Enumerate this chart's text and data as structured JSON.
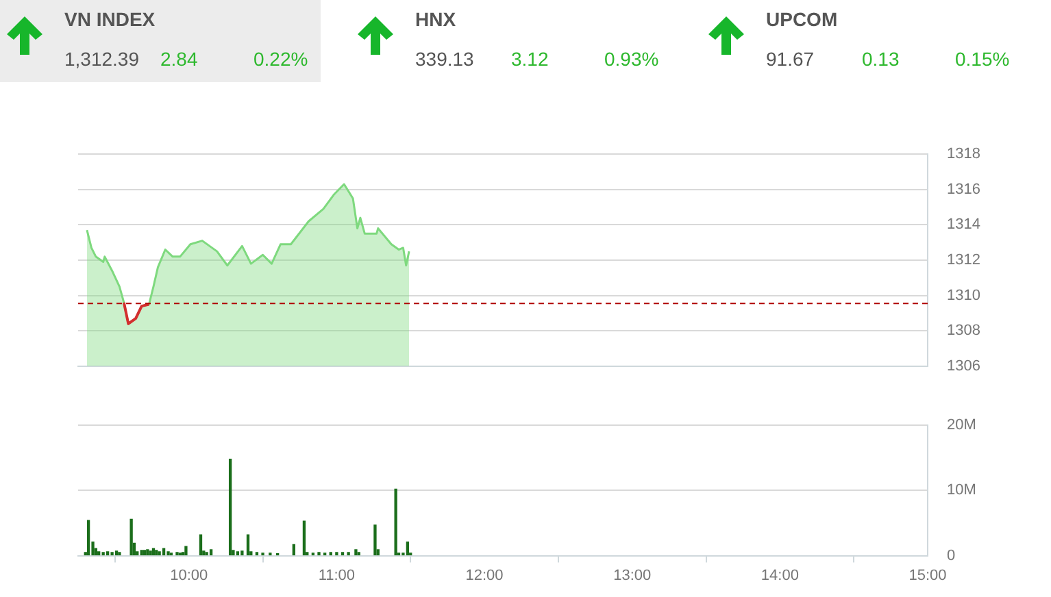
{
  "chart_data": [
    {
      "type": "other",
      "title": "VN INDEX",
      "annotations": [
        "1,312.39",
        "2.84",
        "0.22%"
      ]
    },
    {
      "type": "other",
      "title": "HNX",
      "annotations": [
        "339.13",
        "3.12",
        "0.93%"
      ]
    },
    {
      "type": "other",
      "title": "UPCOM",
      "annotations": [
        "91.67",
        "0.13",
        "0.15%"
      ]
    },
    {
      "type": "area",
      "xlim": [
        9.25,
        15
      ],
      "ylim": [
        1306,
        1318
      ],
      "yticks": [
        1306,
        1308,
        1310,
        1312,
        1314,
        1316,
        1318
      ],
      "tick_labels": "y",
      "grid": "y",
      "marker": "none",
      "ref_lines": [
        {
          "axis": "y",
          "value": 1309.55,
          "color": "#b00000",
          "line_style": "dashed"
        }
      ],
      "series": [
        {
          "color": "#7ed97e",
          "x": [
            9.31,
            9.34,
            9.37,
            9.42,
            9.43,
            9.48,
            9.53,
            9.56,
            9.59,
            9.64,
            9.68,
            9.73,
            9.76,
            9.79,
            9.84,
            9.89,
            9.94,
            10.01,
            10.09,
            10.19,
            10.26,
            10.36,
            10.42,
            10.5,
            10.56,
            10.62,
            10.69,
            10.81,
            10.91,
            10.98,
            11.05,
            11.11,
            11.14,
            11.16,
            11.19,
            11.27,
            11.28,
            11.37,
            11.42,
            11.45,
            11.47,
            11.49
          ],
          "values": [
            1313.7,
            1312.7,
            1312.2,
            1311.9,
            1312.2,
            1311.4,
            1310.5,
            1309.6,
            1308.4,
            1308.7,
            1309.4,
            1309.5,
            1310.5,
            1311.6,
            1312.6,
            1312.2,
            1312.2,
            1312.9,
            1313.1,
            1312.5,
            1311.7,
            1312.8,
            1311.8,
            1312.3,
            1311.8,
            1312.9,
            1312.9,
            1314.2,
            1314.9,
            1315.7,
            1316.3,
            1315.5,
            1313.8,
            1314.4,
            1313.5,
            1313.5,
            1313.8,
            1312.9,
            1312.6,
            1312.7,
            1311.7,
            1312.5
          ]
        },
        {
          "type": "line",
          "color": "#d32f2f",
          "x": [
            9.56,
            9.59,
            9.64,
            9.68,
            9.73
          ],
          "values": [
            1309.6,
            1308.4,
            1308.7,
            1309.4,
            1309.5
          ]
        }
      ]
    },
    {
      "type": "bar",
      "xlim": [
        9.25,
        15
      ],
      "ylim": [
        0,
        20
      ],
      "yticks": [
        {
          "value": 0,
          "label": "0"
        },
        {
          "value": 10,
          "label": "10M"
        },
        {
          "value": 20,
          "label": "20M"
        }
      ],
      "xticks": [
        {
          "value": 10,
          "label": "10:00"
        },
        {
          "value": 11,
          "label": "11:00"
        },
        {
          "value": 12,
          "label": "12:00"
        },
        {
          "value": 13,
          "label": "13:00"
        },
        {
          "value": 14,
          "label": "14:00"
        },
        {
          "value": 15,
          "label": "15:00"
        }
      ],
      "grid": "y",
      "series": [
        {
          "color": "#1b6e1b",
          "x": [
            9.3,
            9.32,
            9.35,
            9.37,
            9.39,
            9.42,
            9.45,
            9.48,
            9.51,
            9.53,
            9.61,
            9.63,
            9.65,
            9.68,
            9.7,
            9.72,
            9.74,
            9.76,
            9.78,
            9.8,
            9.83,
            9.86,
            9.88,
            9.92,
            9.94,
            9.96,
            9.98,
            10.08,
            10.1,
            10.12,
            10.15,
            10.28,
            10.3,
            10.33,
            10.36,
            10.4,
            10.42,
            10.46,
            10.5,
            10.55,
            10.6,
            10.71,
            10.78,
            10.8,
            10.84,
            10.88,
            10.92,
            10.96,
            11.0,
            11.04,
            11.08,
            11.13,
            11.15,
            11.26,
            11.28,
            11.4,
            11.42,
            11.45,
            11.48,
            11.5
          ],
          "values": [
            0.5,
            5.4,
            2.1,
            1.1,
            0.6,
            0.5,
            0.6,
            0.5,
            0.7,
            0.5,
            5.6,
            1.9,
            0.6,
            0.8,
            0.8,
            0.9,
            0.7,
            1.1,
            0.8,
            0.6,
            1.1,
            0.6,
            0.4,
            0.5,
            0.4,
            0.5,
            1.4,
            3.2,
            0.7,
            0.5,
            0.9,
            14.8,
            0.8,
            0.6,
            0.7,
            3.2,
            0.6,
            0.5,
            0.4,
            0.4,
            0.3,
            1.7,
            5.3,
            0.5,
            0.4,
            0.5,
            0.4,
            0.5,
            0.5,
            0.5,
            0.5,
            0.9,
            0.5,
            4.7,
            0.9,
            10.2,
            0.4,
            0.4,
            2.1,
            0.4
          ]
        }
      ]
    }
  ]
}
